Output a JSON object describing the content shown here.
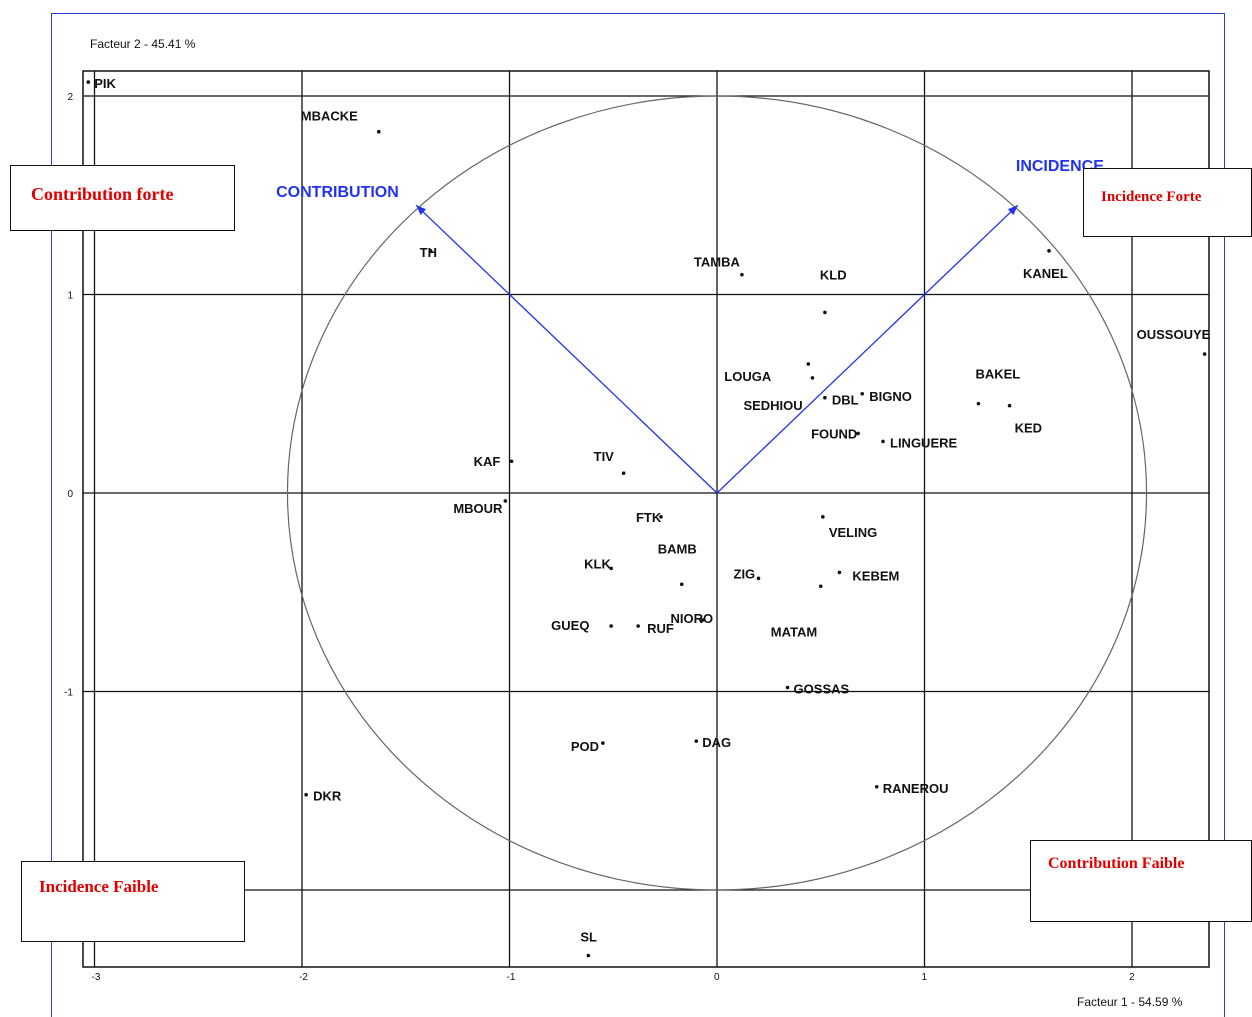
{
  "chart_data": {
    "type": "scatter",
    "xlabel": "Facteur 1 - 54.59 %",
    "ylabel": "Facteur 2 - 45.41 %",
    "xlim": [
      -3.05,
      2.35
    ],
    "ylim": [
      -2.35,
      2.12
    ],
    "x_ticks": [
      "-3",
      "-2",
      "-1",
      "0",
      "1",
      "2"
    ],
    "y_ticks": [
      "2",
      "1",
      "0",
      "-1"
    ],
    "grid": true,
    "circle": {
      "center": [
        0,
        0
      ],
      "rx": 2.07,
      "ry": 2.0
    },
    "points": [
      {
        "label": "PIK",
        "x": -3.03,
        "y": 2.07
      },
      {
        "label": "MBACKE",
        "x": -1.63,
        "y": 1.82
      },
      {
        "label": "TH",
        "x": -1.38,
        "y": 1.22
      },
      {
        "label": "TAMBA",
        "x": 0.12,
        "y": 1.1
      },
      {
        "label": "KLD",
        "x": 0.52,
        "y": 0.91
      },
      {
        "label": "LOUGA",
        "x": 0.44,
        "y": 0.65
      },
      {
        "label": "SEDHIOU",
        "x": 0.46,
        "y": 0.58
      },
      {
        "label": "DBL",
        "x": 0.52,
        "y": 0.48
      },
      {
        "label": "BIGNO",
        "x": 0.7,
        "y": 0.5
      },
      {
        "label": "FOUND",
        "x": 0.68,
        "y": 0.3
      },
      {
        "label": "LINGUERE",
        "x": 0.8,
        "y": 0.26
      },
      {
        "label": "KANEL",
        "x": 1.6,
        "y": 1.22
      },
      {
        "label": "OUSSOUYE",
        "x": 2.35,
        "y": 0.7
      },
      {
        "label": "BAKEL",
        "x": 1.26,
        "y": 0.45
      },
      {
        "label": "KED",
        "x": 1.41,
        "y": 0.44
      },
      {
        "label": "KAF",
        "x": -0.99,
        "y": 0.16
      },
      {
        "label": "TIV",
        "x": -0.45,
        "y": 0.1
      },
      {
        "label": "MBOUR",
        "x": -1.02,
        "y": -0.04
      },
      {
        "label": "FTK",
        "x": -0.27,
        "y": -0.12
      },
      {
        "label": "VELING",
        "x": 0.51,
        "y": -0.12
      },
      {
        "label": "BAMB",
        "x": -0.17,
        "y": -0.46
      },
      {
        "label": "KLK",
        "x": -0.51,
        "y": -0.38
      },
      {
        "label": "ZIG",
        "x": 0.2,
        "y": -0.43
      },
      {
        "label": "KEBEM",
        "x": 0.59,
        "y": -0.4
      },
      {
        "label": "MATAM",
        "x": 0.5,
        "y": -0.47
      },
      {
        "label": "NIORO",
        "x": -0.07,
        "y": -0.64
      },
      {
        "label": "GUEQ",
        "x": -0.51,
        "y": -0.67
      },
      {
        "label": "RUF",
        "x": -0.38,
        "y": -0.67
      },
      {
        "label": "GOSSAS",
        "x": 0.34,
        "y": -0.98
      },
      {
        "label": "POD",
        "x": -0.55,
        "y": -1.26
      },
      {
        "label": "DAG",
        "x": -0.1,
        "y": -1.25
      },
      {
        "label": "DKR",
        "x": -1.98,
        "y": -1.52
      },
      {
        "label": "RANEROU",
        "x": 0.77,
        "y": -1.48
      },
      {
        "label": "SL",
        "x": -0.62,
        "y": -2.33
      }
    ],
    "vectors": [
      {
        "label": "CONTRIBUTION",
        "x": -1.45,
        "y": 1.45
      },
      {
        "label": "INCIDENCE",
        "x": 1.45,
        "y": 1.45
      }
    ],
    "annotations": [
      {
        "text": "Contribution forte",
        "position": "top-left"
      },
      {
        "text": "Incidence Forte",
        "position": "top-right"
      },
      {
        "text": "Incidence Faible",
        "position": "bottom-left"
      },
      {
        "text": "Contribution Faible",
        "position": "bottom-right"
      }
    ],
    "colors": {
      "vector": "#2233ee",
      "annotation_text": "#e00000",
      "frame": "#2a3fd0",
      "grid": "#111111",
      "circle": "#666666"
    }
  }
}
